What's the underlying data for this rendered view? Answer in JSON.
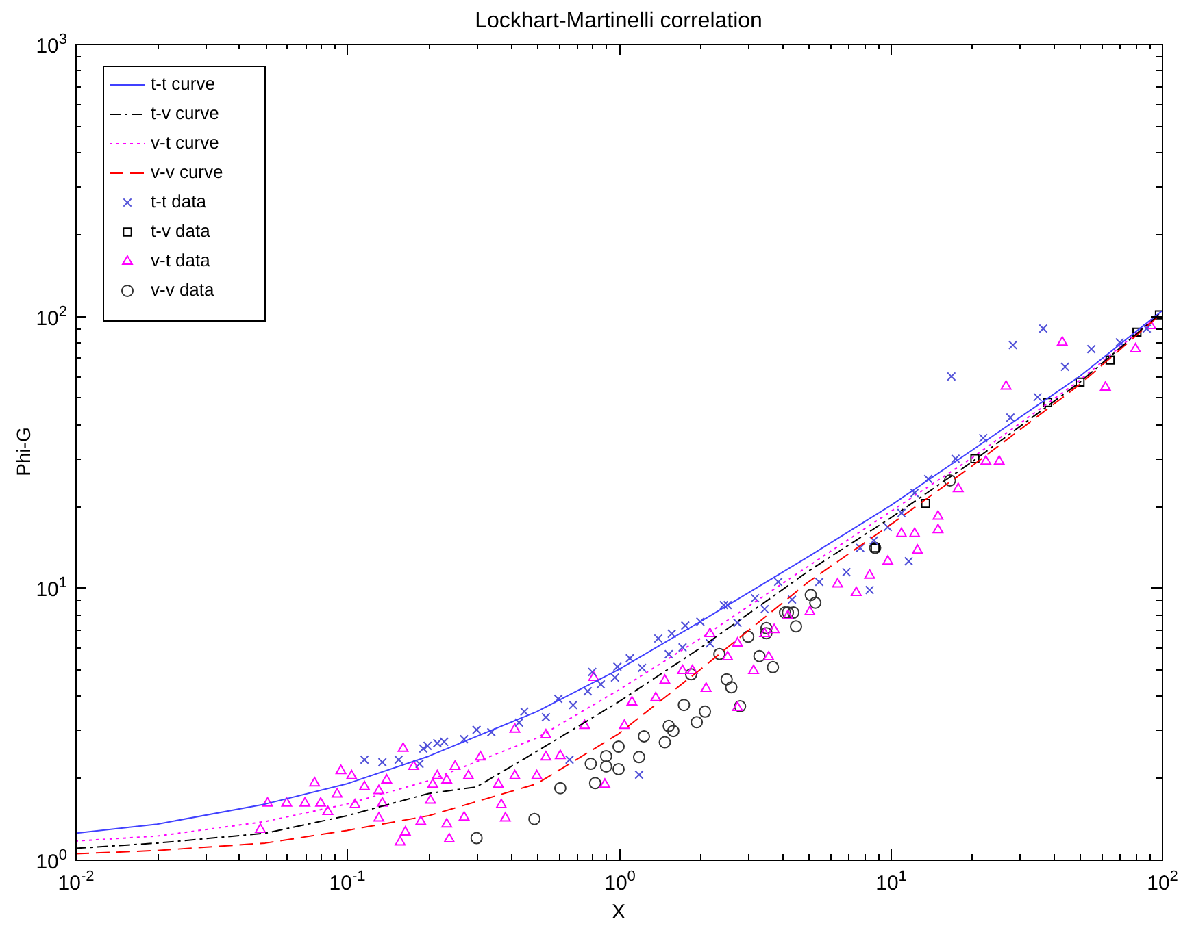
{
  "chart_data": {
    "type": "scatter",
    "title": "Lockhart-Martinelli correlation",
    "xlabel": "X",
    "ylabel": "Phi-G",
    "log": "xy",
    "grid": false,
    "legend": "top left",
    "xlim": [
      0.01,
      100
    ],
    "ylim": [
      1,
      1000
    ],
    "xticks": [
      {
        "value": 0.01,
        "label": "10$^{-2}$"
      },
      {
        "value": 0.02,
        "label": null
      },
      {
        "value": 0.03,
        "label": null
      },
      {
        "value": 0.04,
        "label": null
      },
      {
        "value": 0.05,
        "label": null
      },
      {
        "value": 0.06,
        "label": null
      },
      {
        "value": 0.07,
        "label": null
      },
      {
        "value": 0.08,
        "label": null
      },
      {
        "value": 0.09,
        "label": null
      },
      {
        "value": 0.1,
        "label": "10$^{-1}$"
      },
      {
        "value": 0.2,
        "label": null
      },
      {
        "value": 0.3,
        "label": null
      },
      {
        "value": 0.4,
        "label": null
      },
      {
        "value": 0.5,
        "label": null
      },
      {
        "value": 0.6,
        "label": null
      },
      {
        "value": 0.7,
        "label": null
      },
      {
        "value": 0.8,
        "label": null
      },
      {
        "value": 0.9,
        "label": null
      },
      {
        "value": 1,
        "label": "10$^{0}$"
      },
      {
        "value": 2,
        "label": null
      },
      {
        "value": 3,
        "label": null
      },
      {
        "value": 4,
        "label": null
      },
      {
        "value": 5,
        "label": null
      },
      {
        "value": 6,
        "label": null
      },
      {
        "value": 7,
        "label": null
      },
      {
        "value": 8,
        "label": null
      },
      {
        "value": 9,
        "label": null
      },
      {
        "value": 10,
        "label": "10$^{1}$"
      },
      {
        "value": 20,
        "label": null
      },
      {
        "value": 30,
        "label": null
      },
      {
        "value": 40,
        "label": null
      },
      {
        "value": 50,
        "label": null
      },
      {
        "value": 60,
        "label": null
      },
      {
        "value": 70,
        "label": null
      },
      {
        "value": 80,
        "label": null
      },
      {
        "value": 90,
        "label": null
      },
      {
        "value": 100,
        "label": "10$^{2}$"
      }
    ],
    "yticks": [
      {
        "value": 1,
        "label": "10$^{0}$"
      },
      {
        "value": 2,
        "label": null
      },
      {
        "value": 3,
        "label": null
      },
      {
        "value": 4,
        "label": null
      },
      {
        "value": 5,
        "label": null
      },
      {
        "value": 6,
        "label": null
      },
      {
        "value": 7,
        "label": null
      },
      {
        "value": 8,
        "label": null
      },
      {
        "value": 9,
        "label": null
      },
      {
        "value": 10,
        "label": "10$^{1}$"
      },
      {
        "value": 20,
        "label": null
      },
      {
        "value": 30,
        "label": null
      },
      {
        "value": 40,
        "label": null
      },
      {
        "value": 50,
        "label": null
      },
      {
        "value": 60,
        "label": null
      },
      {
        "value": 70,
        "label": null
      },
      {
        "value": 80,
        "label": null
      },
      {
        "value": 90,
        "label": null
      },
      {
        "value": 100,
        "label": "10$^{2}$"
      },
      {
        "value": 200,
        "label": null
      },
      {
        "value": 300,
        "label": null
      },
      {
        "value": 400,
        "label": null
      },
      {
        "value": 500,
        "label": null
      },
      {
        "value": 600,
        "label": null
      },
      {
        "value": 700,
        "label": null
      },
      {
        "value": 800,
        "label": null
      },
      {
        "value": 900,
        "label": null
      },
      {
        "value": 1000,
        "label": "10$^{3}$"
      }
    ],
    "series": [
      {
        "name": "t-t curve",
        "type": "line",
        "color": "#4040ff",
        "line_style": "solid",
        "marker": "none",
        "x": [
          0.01,
          0.02,
          0.05,
          0.1,
          0.2,
          0.5,
          1,
          2,
          5,
          10,
          20,
          50,
          100
        ],
        "values": [
          1.25,
          1.35,
          1.6,
          1.9,
          2.4,
          3.5,
          5,
          7.5,
          13,
          20,
          32,
          60,
          104
        ]
      },
      {
        "name": "t-v curve",
        "type": "line",
        "color": "#000000",
        "line_style": "dashdot",
        "marker": "none",
        "x": [
          0.01,
          0.02,
          0.05,
          0.1,
          0.2,
          0.3,
          0.5,
          1,
          2,
          5,
          10,
          20,
          50,
          100
        ],
        "values": [
          1.1,
          1.15,
          1.25,
          1.45,
          1.75,
          1.85,
          2.5,
          3.8,
          6,
          11.5,
          18,
          29,
          57,
          103
        ]
      },
      {
        "name": "v-t curve",
        "type": "line",
        "color": "#ff00ff",
        "line_style": "dotted",
        "marker": "none",
        "x": [
          0.01,
          0.02,
          0.05,
          0.1,
          0.2,
          0.5,
          1,
          2,
          5,
          10,
          20,
          50,
          100
        ],
        "values": [
          1.17,
          1.22,
          1.38,
          1.6,
          1.95,
          2.8,
          4.2,
          6.5,
          12,
          19,
          30,
          58,
          103
        ]
      },
      {
        "name": "v-v curve",
        "type": "line",
        "color": "#ff0000",
        "line_style": "dashed",
        "marker": "none",
        "x": [
          0.01,
          0.02,
          0.05,
          0.1,
          0.2,
          0.5,
          1,
          2,
          5,
          10,
          20,
          50,
          100
        ],
        "values": [
          1.05,
          1.08,
          1.15,
          1.28,
          1.45,
          1.9,
          2.9,
          5,
          10.5,
          17,
          28,
          56,
          102
        ]
      },
      {
        "name": "t-t data",
        "type": "scatter",
        "color": "#5050d8",
        "marker": "cross",
        "x": [
          0.116,
          0.135,
          0.155,
          0.185,
          0.198,
          0.215,
          0.228,
          0.191,
          0.27,
          0.3,
          0.34,
          0.43,
          0.45,
          0.54,
          0.6,
          0.68,
          0.77,
          0.8,
          0.86,
          0.97,
          1.1,
          1.22,
          1.4,
          1.53,
          1.72,
          2.0,
          2.17,
          2.74,
          3.45,
          4.35,
          5.48,
          6.9,
          7.75,
          8.7,
          9.8,
          11,
          12.3,
          13.8,
          17.4,
          22,
          27.7,
          34.9,
          44,
          55,
          70,
          88,
          16.8,
          28.3,
          36.6,
          11.7,
          8.4,
          1.19,
          0.66,
          0.99,
          1.57,
          1.76,
          2.44,
          2.52,
          3.18,
          3.87
        ],
        "values": [
          2.33,
          2.28,
          2.33,
          2.25,
          2.62,
          2.68,
          2.71,
          2.56,
          2.77,
          3.0,
          2.94,
          3.19,
          3.5,
          3.34,
          3.9,
          3.7,
          4.16,
          4.9,
          4.41,
          4.67,
          5.5,
          5.07,
          6.5,
          5.69,
          6.03,
          7.5,
          6.24,
          7.42,
          8.34,
          9.04,
          10.5,
          11.4,
          14,
          14.9,
          16.7,
          18.8,
          22.3,
          25.1,
          29.8,
          35.5,
          42.2,
          50.2,
          64.9,
          75.4,
          79.8,
          89.7,
          59.8,
          78,
          89.7,
          12.5,
          9.8,
          2.05,
          2.33,
          5.12,
          6.77,
          7.25,
          8.63,
          8.63,
          9.15,
          10.5
        ]
      },
      {
        "name": "t-v data",
        "type": "scatter",
        "color": "#000000",
        "marker": "square",
        "x": [
          8.8,
          13.5,
          20.5,
          38,
          50,
          64.5,
          81,
          98
        ],
        "values": [
          14,
          20.4,
          29.8,
          48,
          57,
          68.7,
          87,
          100.7
        ]
      },
      {
        "name": "v-t data",
        "type": "scatter",
        "color": "#ff00ff",
        "marker": "triangle",
        "x": [
          0.051,
          0.048,
          0.06,
          0.076,
          0.07,
          0.08,
          0.085,
          0.092,
          0.107,
          0.116,
          0.131,
          0.135,
          0.161,
          0.14,
          0.095,
          0.104,
          0.131,
          0.157,
          0.164,
          0.187,
          0.233,
          0.207,
          0.203,
          0.176,
          0.233,
          0.238,
          0.27,
          0.37,
          0.383,
          0.361,
          0.215,
          0.28,
          0.415,
          0.5,
          0.54,
          0.61,
          0.81,
          0.75,
          0.89,
          1.05,
          1.12,
          1.37,
          1.48,
          1.72,
          1.87,
          2.1,
          2.52,
          2.74,
          3.14,
          3.45,
          3.57,
          2.74,
          2.17,
          0.415,
          0.54,
          0.31,
          0.25,
          12.6,
          15,
          17.8,
          22.5,
          25.2,
          26.7,
          43,
          62,
          80,
          91,
          7.5,
          6.4,
          8.4,
          9.8,
          12.3,
          15,
          11,
          5.06,
          4.2,
          3.74
        ],
        "values": [
          1.61,
          1.29,
          1.61,
          1.91,
          1.61,
          1.61,
          1.5,
          1.74,
          1.59,
          1.85,
          1.79,
          1.61,
          2.56,
          1.96,
          2.12,
          2.03,
          1.42,
          1.16,
          1.26,
          1.38,
          1.35,
          1.89,
          1.65,
          2.2,
          1.96,
          1.19,
          1.43,
          1.59,
          1.42,
          1.89,
          2.03,
          2.03,
          2.03,
          2.03,
          2.38,
          2.41,
          4.67,
          3.11,
          1.89,
          3.11,
          3.79,
          3.93,
          4.56,
          4.95,
          4.95,
          4.26,
          5.56,
          6.24,
          4.95,
          6.77,
          5.56,
          3.62,
          6.77,
          3.01,
          2.87,
          2.38,
          2.2,
          13.7,
          16.3,
          23.1,
          29.1,
          29.1,
          55,
          79.8,
          54.5,
          75.4,
          91.8,
          9.58,
          10.3,
          11.1,
          12.5,
          15.8,
          18.3,
          15.8,
          8.15,
          7.87,
          7
        ]
      },
      {
        "name": "v-v data",
        "type": "scatter",
        "color": "#333333",
        "marker": "circle",
        "x": [
          0.3,
          0.49,
          0.61,
          0.82,
          0.79,
          0.9,
          1.0,
          0.9,
          1.0,
          1.19,
          1.24,
          1.48,
          1.59,
          1.53,
          1.94,
          2.08,
          1.74,
          2.8,
          2.5,
          2.6,
          3.3,
          3.7,
          3.0,
          3.5,
          1.85,
          2.35,
          4.1,
          3.5,
          4.5,
          4.2,
          4.4,
          5.1,
          5.3,
          8.8,
          16.6
        ],
        "values": [
          1.2,
          1.41,
          1.83,
          1.91,
          2.25,
          2.2,
          2.15,
          2.4,
          2.6,
          2.38,
          2.84,
          2.7,
          2.97,
          3.1,
          3.2,
          3.5,
          3.7,
          3.66,
          4.6,
          4.3,
          5.6,
          5.1,
          6.6,
          6.8,
          4.8,
          5.7,
          8.1,
          7.1,
          7.2,
          8.1,
          8.1,
          9.4,
          8.8,
          14,
          24.8
        ]
      }
    ]
  }
}
